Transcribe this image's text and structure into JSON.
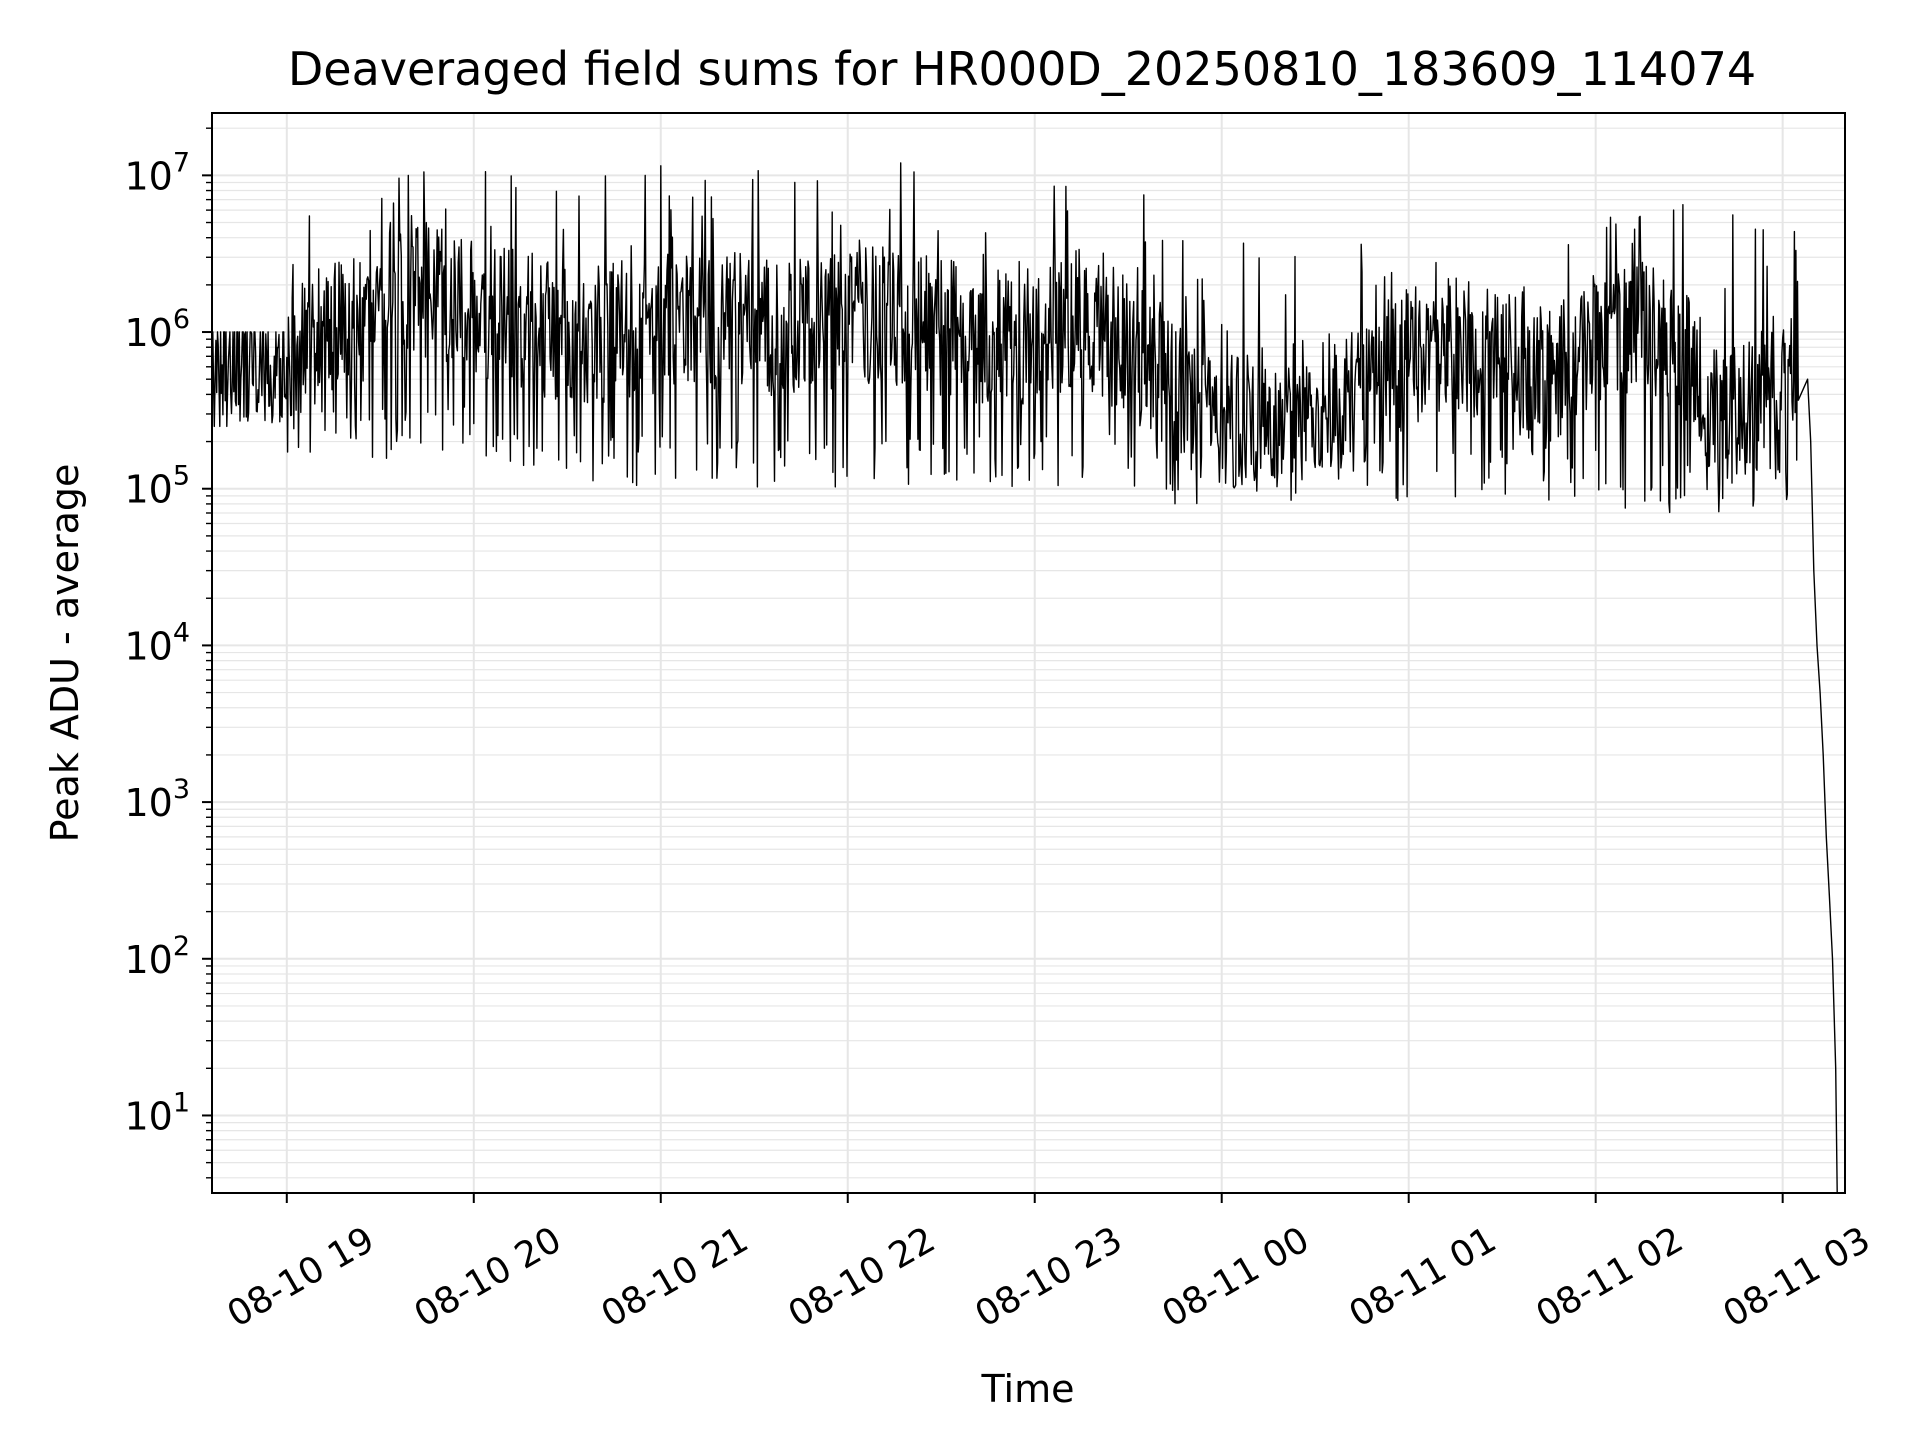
{
  "chart_data": {
    "type": "line",
    "title": "Deaveraged field sums for HR000D_20250810_183609_114074",
    "xlabel": "Time",
    "ylabel": "Peak ADU - average",
    "yscale": "log",
    "ylim": [
      3.2,
      25000000
    ],
    "xlim": [
      "2025-08-10 18:36:00",
      "2025-08-11 03:20:00"
    ],
    "grid": true,
    "legend": "none",
    "line_color": "#000000",
    "grid_color": "#e6e6e6",
    "x_tick_labels": [
      {
        "time": "2025-08-10 19:00",
        "label": "08-10 19"
      },
      {
        "time": "2025-08-10 20:00",
        "label": "08-10 20"
      },
      {
        "time": "2025-08-10 21:00",
        "label": "08-10 21"
      },
      {
        "time": "2025-08-10 22:00",
        "label": "08-10 22"
      },
      {
        "time": "2025-08-10 23:00",
        "label": "08-10 23"
      },
      {
        "time": "2025-08-11 00:00",
        "label": "08-11 00"
      },
      {
        "time": "2025-08-11 01:00",
        "label": "08-11 01"
      },
      {
        "time": "2025-08-11 02:00",
        "label": "08-11 02"
      },
      {
        "time": "2025-08-11 03:00",
        "label": "08-11 03"
      }
    ],
    "y_tick_labels": [
      {
        "value": 10,
        "base": "10",
        "exp": "1"
      },
      {
        "value": 100,
        "base": "10",
        "exp": "2"
      },
      {
        "value": 1000,
        "base": "10",
        "exp": "3"
      },
      {
        "value": 10000,
        "base": "10",
        "exp": "4"
      },
      {
        "value": 100000,
        "base": "10",
        "exp": "5"
      },
      {
        "value": 1000000,
        "base": "10",
        "exp": "6"
      },
      {
        "value": 10000000,
        "base": "10",
        "exp": "7"
      }
    ],
    "series": [
      {
        "x": [
          "2025-08-10 18:36",
          "2025-08-10 18:40",
          "2025-08-10 18:45",
          "2025-08-10 18:50",
          "2025-08-10 18:55",
          "2025-08-10 19:00",
          "2025-08-10 19:10",
          "2025-08-10 19:20",
          "2025-08-10 19:30",
          "2025-08-10 19:40",
          "2025-08-10 19:50",
          "2025-08-10 20:00",
          "2025-08-10 20:15",
          "2025-08-10 20:30",
          "2025-08-10 20:45",
          "2025-08-10 21:00",
          "2025-08-10 21:15",
          "2025-08-10 21:30",
          "2025-08-10 21:45",
          "2025-08-10 22:00",
          "2025-08-10 22:15",
          "2025-08-10 22:30",
          "2025-08-10 22:45",
          "2025-08-10 23:00",
          "2025-08-10 23:15",
          "2025-08-10 23:30",
          "2025-08-10 23:45",
          "2025-08-11 00:00",
          "2025-08-11 00:15",
          "2025-08-11 00:30",
          "2025-08-11 00:45",
          "2025-08-11 01:00",
          "2025-08-11 01:15",
          "2025-08-11 01:30",
          "2025-08-11 01:45",
          "2025-08-11 02:00",
          "2025-08-11 02:10",
          "2025-08-11 02:20",
          "2025-08-11 02:30",
          "2025-08-11 02:40",
          "2025-08-11 02:50",
          "2025-08-11 03:00",
          "2025-08-11 03:05",
          "2025-08-11 03:08",
          "2025-08-11 03:09",
          "2025-08-11 03:10",
          "2025-08-11 03:11",
          "2025-08-11 03:12",
          "2025-08-11 03:13",
          "2025-08-11 03:14",
          "2025-08-11 03:15",
          "2025-08-11 03:16",
          "2025-08-11 03:17",
          "2025-08-11 03:17:30"
        ],
        "y": [
          550000,
          600000,
          650000,
          700000,
          600000,
          700000,
          900000,
          1100000,
          1500000,
          2000000,
          1800000,
          1500000,
          1200000,
          900000,
          1000000,
          1100000,
          1200000,
          1100000,
          1000000,
          1200000,
          1300000,
          1100000,
          900000,
          1000000,
          1300000,
          800000,
          400000,
          300000,
          250000,
          350000,
          400000,
          700000,
          800000,
          650000,
          500000,
          900000,
          1100000,
          900000,
          600000,
          250000,
          350000,
          550000,
          650000,
          500000,
          200000,
          30000,
          10000,
          5000,
          2000,
          600,
          250,
          100,
          20,
          3.2
        ]
      }
    ],
    "noise_envelope": [
      {
        "from": "2025-08-10 18:36",
        "to": "2025-08-10 19:00",
        "low": 250000,
        "high": 1000000
      },
      {
        "from": "2025-08-10 19:00",
        "to": "2025-08-10 20:00",
        "low": 150000,
        "high": 10000000
      },
      {
        "from": "2025-08-10 20:00",
        "to": "2025-08-10 23:30",
        "low": 100000,
        "high": 11000000
      },
      {
        "from": "2025-08-10 23:30",
        "to": "2025-08-11 02:00",
        "low": 80000,
        "high": 4000000
      },
      {
        "from": "2025-08-11 02:00",
        "to": "2025-08-11 03:06",
        "low": 70000,
        "high": 6000000
      }
    ],
    "notable_peaks": [
      {
        "x": "2025-08-10 19:39",
        "y": 10000000
      },
      {
        "x": "2025-08-10 19:44",
        "y": 10500000
      },
      {
        "x": "2025-08-10 20:55",
        "y": 10000000
      },
      {
        "x": "2025-08-10 21:00",
        "y": 11500000
      },
      {
        "x": "2025-08-10 21:43",
        "y": 9000000
      },
      {
        "x": "2025-08-10 22:17",
        "y": 12000000
      },
      {
        "x": "2025-08-10 23:10",
        "y": 8500000
      },
      {
        "x": "2025-08-10 23:35",
        "y": 7500000
      },
      {
        "x": "2025-08-11 02:25",
        "y": 6000000
      },
      {
        "x": "2025-08-11 02:28",
        "y": 6500000
      }
    ]
  }
}
